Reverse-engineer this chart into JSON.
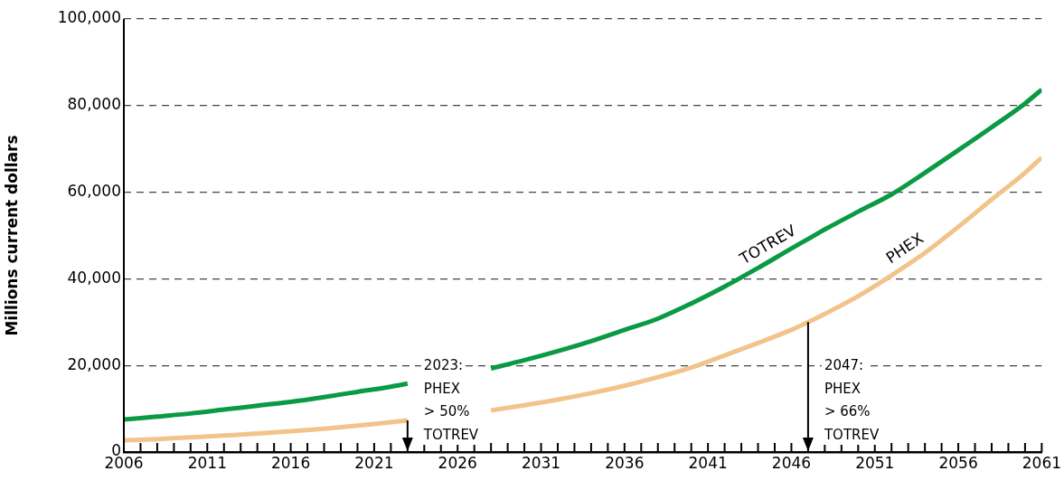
{
  "chart_data": {
    "type": "line",
    "ylabel": "Millions current dollars",
    "x": [
      2006,
      2008,
      2010,
      2012,
      2014,
      2016,
      2018,
      2020,
      2022,
      2023,
      2025,
      2028,
      2030,
      2032,
      2034,
      2036,
      2038,
      2040,
      2042,
      2044,
      2046,
      2047,
      2048,
      2050,
      2052,
      2054,
      2056,
      2058,
      2060,
      2061
    ],
    "series": [
      {
        "name": "TOTREV",
        "color": "#0a9a44",
        "values": [
          7500,
          8200,
          8900,
          9800,
          10700,
          11600,
          12700,
          13900,
          15100,
          15800,
          null,
          19300,
          21200,
          23300,
          25600,
          28200,
          30800,
          34300,
          38200,
          42500,
          47000,
          49200,
          51400,
          55500,
          59500,
          64500,
          69700,
          75000,
          80500,
          83700
        ]
      },
      {
        "name": "PHEX",
        "color": "#f2c38a",
        "values": [
          2700,
          3000,
          3400,
          3800,
          4300,
          4800,
          5400,
          6100,
          6900,
          7300,
          null,
          9600,
          10800,
          12100,
          13600,
          15300,
          17300,
          19500,
          22300,
          25200,
          28200,
          30000,
          31900,
          36000,
          40800,
          46000,
          52000,
          58300,
          64500,
          68000
        ]
      }
    ],
    "xlim": [
      2006,
      2061
    ],
    "xticks": [
      2006,
      {
        "value": 2007,
        "label": null
      },
      {
        "value": 2008,
        "label": null
      },
      {
        "value": 2009,
        "label": null
      },
      {
        "value": 2010,
        "label": null
      },
      2011,
      {
        "value": 2012,
        "label": null
      },
      {
        "value": 2013,
        "label": null
      },
      {
        "value": 2014,
        "label": null
      },
      {
        "value": 2015,
        "label": null
      },
      2016,
      {
        "value": 2017,
        "label": null
      },
      {
        "value": 2018,
        "label": null
      },
      {
        "value": 2019,
        "label": null
      },
      {
        "value": 2020,
        "label": null
      },
      2021,
      {
        "value": 2022,
        "label": null
      },
      {
        "value": 2023,
        "label": null
      },
      {
        "value": 2024,
        "label": null
      },
      {
        "value": 2025,
        "label": null
      },
      2026,
      {
        "value": 2027,
        "label": null
      },
      {
        "value": 2028,
        "label": null
      },
      {
        "value": 2029,
        "label": null
      },
      {
        "value": 2030,
        "label": null
      },
      2031,
      {
        "value": 2032,
        "label": null
      },
      {
        "value": 2033,
        "label": null
      },
      {
        "value": 2034,
        "label": null
      },
      {
        "value": 2035,
        "label": null
      },
      2036,
      {
        "value": 2037,
        "label": null
      },
      {
        "value": 2038,
        "label": null
      },
      {
        "value": 2039,
        "label": null
      },
      {
        "value": 2040,
        "label": null
      },
      2041,
      {
        "value": 2042,
        "label": null
      },
      {
        "value": 2043,
        "label": null
      },
      {
        "value": 2044,
        "label": null
      },
      {
        "value": 2045,
        "label": null
      },
      2046,
      {
        "value": 2047,
        "label": null
      },
      {
        "value": 2048,
        "label": null
      },
      {
        "value": 2049,
        "label": null
      },
      {
        "value": 2050,
        "label": null
      },
      2051,
      {
        "value": 2052,
        "label": null
      },
      {
        "value": 2053,
        "label": null
      },
      {
        "value": 2054,
        "label": null
      },
      {
        "value": 2055,
        "label": null
      },
      2056,
      {
        "value": 2057,
        "label": null
      },
      {
        "value": 2058,
        "label": null
      },
      {
        "value": 2059,
        "label": null
      },
      {
        "value": 2060,
        "label": null
      },
      2061
    ],
    "ylim": [
      0,
      100000
    ],
    "yticks": [
      0,
      {
        "value": 20000,
        "label": "20,000"
      },
      {
        "value": 40000,
        "label": "40,000"
      },
      {
        "value": 60000,
        "label": "60,000"
      },
      {
        "value": 80000,
        "label": "80,000"
      },
      {
        "value": 100000,
        "label": "100,000"
      }
    ],
    "grid": "y",
    "legend": false,
    "marker": "none",
    "line_style": "solid",
    "annotations": [
      {
        "text": "2023:\nPHEX\n> 50%\nTOTREV",
        "x": 2023,
        "y": 7300
      },
      {
        "text": "2047:\nPHEX\n> 66%\nTOTREV",
        "x": 2047,
        "y": 30000
      }
    ]
  }
}
